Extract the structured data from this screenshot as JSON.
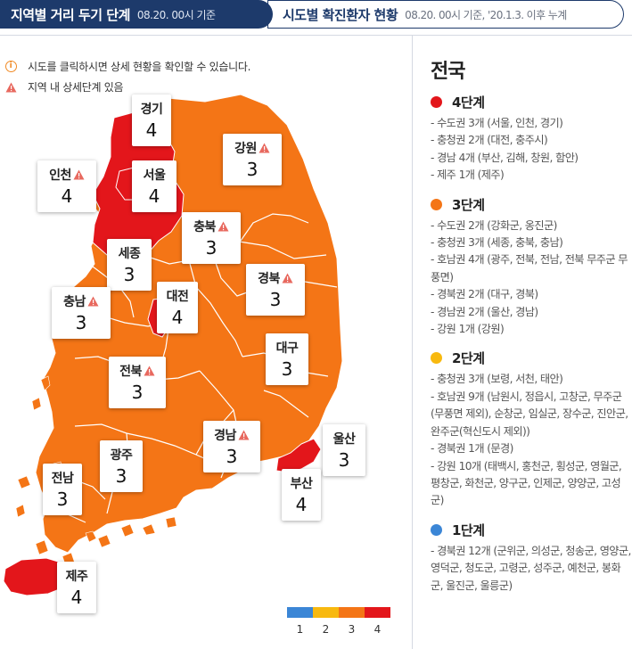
{
  "tabs": {
    "active": {
      "title": "지역별 거리 두기 단계",
      "subtitle": "08.20. 00시 기준"
    },
    "inactive": {
      "title": "시도별 확진환자 현황",
      "subtitle": "08.20. 00시 기준, '20.1.3. 이후 누계"
    }
  },
  "notes": {
    "info": "시도를 클릭하시면 상세 현황을 확인할 수 있습니다.",
    "warning": "지역 내 상세단계 있음"
  },
  "colors": {
    "level1": "#3b86d6",
    "level2": "#f8b90f",
    "level3": "#f47516",
    "level4": "#e3161b",
    "tab_active_bg": "#1d3a6b",
    "warning_icon": "#e8695f",
    "info_icon": "#f08a24"
  },
  "regions": {
    "gyeonggi": {
      "name": "경기",
      "level": "4",
      "warn": false
    },
    "gangwon": {
      "name": "강원",
      "level": "3",
      "warn": true
    },
    "incheon": {
      "name": "인천",
      "level": "4",
      "warn": true
    },
    "seoul": {
      "name": "서울",
      "level": "4",
      "warn": false
    },
    "chungbuk": {
      "name": "충북",
      "level": "3",
      "warn": true
    },
    "sejong": {
      "name": "세종",
      "level": "3",
      "warn": false
    },
    "gyeongbuk": {
      "name": "경북",
      "level": "3",
      "warn": true
    },
    "chungnam": {
      "name": "충남",
      "level": "3",
      "warn": true
    },
    "daejeon": {
      "name": "대전",
      "level": "4",
      "warn": false
    },
    "daegu": {
      "name": "대구",
      "level": "3",
      "warn": false
    },
    "jeonbuk": {
      "name": "전북",
      "level": "3",
      "warn": true
    },
    "gyeongnam": {
      "name": "경남",
      "level": "3",
      "warn": true
    },
    "ulsan": {
      "name": "울산",
      "level": "3",
      "warn": false
    },
    "gwangju": {
      "name": "광주",
      "level": "3",
      "warn": false
    },
    "jeonnam": {
      "name": "전남",
      "level": "3",
      "warn": false
    },
    "busan": {
      "name": "부산",
      "level": "4",
      "warn": false
    },
    "jeju": {
      "name": "제주",
      "level": "4",
      "warn": false
    }
  },
  "legend": {
    "labels": [
      "1",
      "2",
      "3",
      "4"
    ]
  },
  "panel": {
    "title": "전국",
    "levels": [
      {
        "label": "4단계",
        "items": [
          "- 수도권 3개 (서울, 인천, 경기)",
          "- 충청권 2개 (대전, 충주시)",
          "- 경남 4개 (부산, 김해, 창원, 함안)",
          "- 제주 1개 (제주)"
        ]
      },
      {
        "label": "3단계",
        "items": [
          "- 수도권 2개 (강화군, 옹진군)",
          "- 충청권 3개 (세종, 충북, 충남)",
          "- 호남권 4개 (광주, 전북, 전남, 전북 무주군 무풍면)",
          "- 경북권 2개 (대구, 경북)",
          "- 경남권 2개 (울산, 경남)",
          "- 강원 1개 (강원)"
        ]
      },
      {
        "label": "2단계",
        "items": [
          "- 충청권 3개 (보령, 서천, 태안)",
          "- 호남권 9개 (남원시, 정읍시, 고창군, 무주군(무풍면 제외), 순창군, 임실군, 장수군, 진안군, 완주군(혁신도시 제외))",
          "- 경북권 1개 (문경)",
          "- 강원 10개 (태백시, 홍천군, 횡성군, 영월군, 평창군, 화천군, 양구군, 인제군, 양양군, 고성군)"
        ]
      },
      {
        "label": "1단계",
        "items": [
          "- 경북권 12개 (군위군, 의성군, 청송군, 영양군, 영덕군, 청도군, 고령군, 성주군, 예천군, 봉화군, 울진군, 울릉군)"
        ]
      }
    ]
  }
}
